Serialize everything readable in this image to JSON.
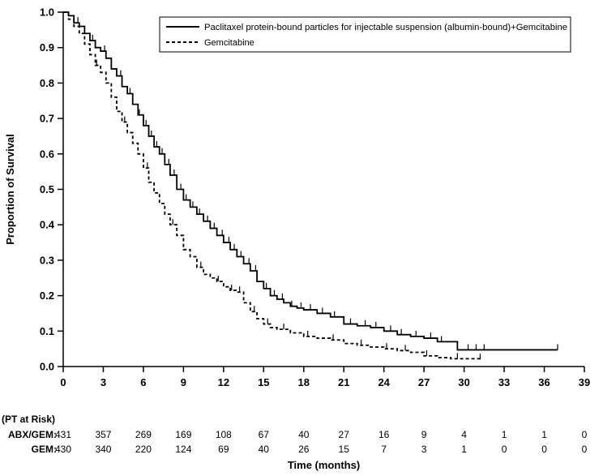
{
  "chart_data": {
    "type": "line",
    "subtype": "kaplan-meier-step",
    "title": "",
    "xlabel": "Time (months)",
    "ylabel": "Proportion of Survival",
    "x_range": [
      0,
      39
    ],
    "y_range": [
      0.0,
      1.0
    ],
    "x_ticks": [
      0,
      3,
      6,
      9,
      12,
      15,
      18,
      21,
      24,
      27,
      30,
      33,
      36,
      39
    ],
    "y_ticks": [
      0.0,
      0.1,
      0.2,
      0.3,
      0.4,
      0.5,
      0.6,
      0.7,
      0.8,
      0.9,
      1.0
    ],
    "grid": false,
    "legend_position": "top-inside-box",
    "line_color": "#000000",
    "series": [
      {
        "name": "Paclitaxel protein-bound particles for injectable suspension (albumin-bound)+Gemcitabine",
        "style": "solid",
        "x": [
          0,
          0.4,
          0.8,
          1.2,
          1.6,
          2.0,
          2.4,
          2.8,
          3.2,
          3.6,
          4.0,
          4.4,
          4.8,
          5.2,
          5.6,
          6.0,
          6.4,
          6.8,
          7.2,
          7.6,
          8.0,
          8.5,
          9.0,
          9.5,
          10.0,
          10.5,
          11.0,
          11.5,
          12.0,
          12.5,
          13.0,
          13.5,
          14.0,
          14.5,
          15.0,
          15.5,
          16.0,
          16.5,
          17.0,
          17.5,
          18.0,
          19.0,
          20.0,
          21.0,
          22.0,
          23.0,
          24.0,
          25.0,
          26.0,
          27.0,
          28.0,
          29.5,
          31.0,
          37.0
        ],
        "y": [
          1.0,
          0.99,
          0.97,
          0.96,
          0.94,
          0.92,
          0.9,
          0.89,
          0.87,
          0.84,
          0.82,
          0.79,
          0.77,
          0.74,
          0.71,
          0.68,
          0.65,
          0.62,
          0.6,
          0.57,
          0.54,
          0.5,
          0.47,
          0.45,
          0.43,
          0.41,
          0.39,
          0.37,
          0.35,
          0.33,
          0.31,
          0.29,
          0.27,
          0.24,
          0.22,
          0.2,
          0.19,
          0.18,
          0.17,
          0.165,
          0.16,
          0.15,
          0.14,
          0.12,
          0.115,
          0.11,
          0.1,
          0.09,
          0.085,
          0.08,
          0.07,
          0.047,
          0.047,
          0.047
        ],
        "censor_x": [
          1.1,
          2.2,
          3.1,
          4.3,
          5.0,
          5.7,
          6.2,
          6.6,
          7.0,
          7.4,
          7.9,
          8.3,
          8.8,
          9.2,
          9.7,
          10.2,
          10.8,
          11.3,
          11.9,
          12.4,
          12.8,
          13.3,
          13.9,
          14.4,
          15.2,
          15.8,
          16.4,
          17.1,
          17.8,
          18.5,
          19.4,
          20.3,
          21.5,
          22.6,
          23.4,
          24.5,
          25.3,
          26.4,
          27.5,
          28.3,
          30.3,
          30.9,
          31.5,
          37.0
        ]
      },
      {
        "name": "Gemcitabine",
        "style": "dashed",
        "x": [
          0,
          0.4,
          0.8,
          1.2,
          1.6,
          2.0,
          2.4,
          2.8,
          3.2,
          3.6,
          4.0,
          4.4,
          4.8,
          5.2,
          5.6,
          6.0,
          6.4,
          6.8,
          7.2,
          7.6,
          8.0,
          8.5,
          9.0,
          9.5,
          10.0,
          10.5,
          11.0,
          11.5,
          12.0,
          12.5,
          13.0,
          13.5,
          14.0,
          14.5,
          15.0,
          15.5,
          16.0,
          17.0,
          18.0,
          19.0,
          20.0,
          21.0,
          22.0,
          23.0,
          24.0,
          25.0,
          26.0,
          27.0,
          28.0,
          29.0,
          31.2
        ],
        "y": [
          1.0,
          0.98,
          0.96,
          0.94,
          0.91,
          0.88,
          0.85,
          0.83,
          0.8,
          0.76,
          0.72,
          0.69,
          0.66,
          0.63,
          0.6,
          0.56,
          0.52,
          0.49,
          0.46,
          0.43,
          0.4,
          0.37,
          0.33,
          0.31,
          0.28,
          0.26,
          0.25,
          0.24,
          0.225,
          0.215,
          0.21,
          0.18,
          0.155,
          0.135,
          0.12,
          0.11,
          0.105,
          0.095,
          0.085,
          0.08,
          0.075,
          0.065,
          0.06,
          0.055,
          0.05,
          0.045,
          0.04,
          0.03,
          0.025,
          0.022,
          0.02
        ],
        "censor_x": [
          2.5,
          4.6,
          6.3,
          8.2,
          10.3,
          11.6,
          12.6,
          13.2,
          14.3,
          15.3,
          16.5,
          18.3,
          20.2,
          22.3,
          24.2,
          25.6,
          27.2,
          29.5,
          31.2
        ]
      }
    ],
    "risk_table": {
      "title": "(PT at Risk)",
      "rows": [
        {
          "label": "ABX/GEM:",
          "values": [
            431,
            357,
            269,
            169,
            108,
            67,
            40,
            27,
            16,
            9,
            4,
            1,
            1,
            0
          ]
        },
        {
          "label": "GEM:",
          "values": [
            430,
            340,
            220,
            124,
            69,
            40,
            26,
            15,
            7,
            3,
            1,
            0,
            0,
            0
          ]
        }
      ]
    }
  }
}
